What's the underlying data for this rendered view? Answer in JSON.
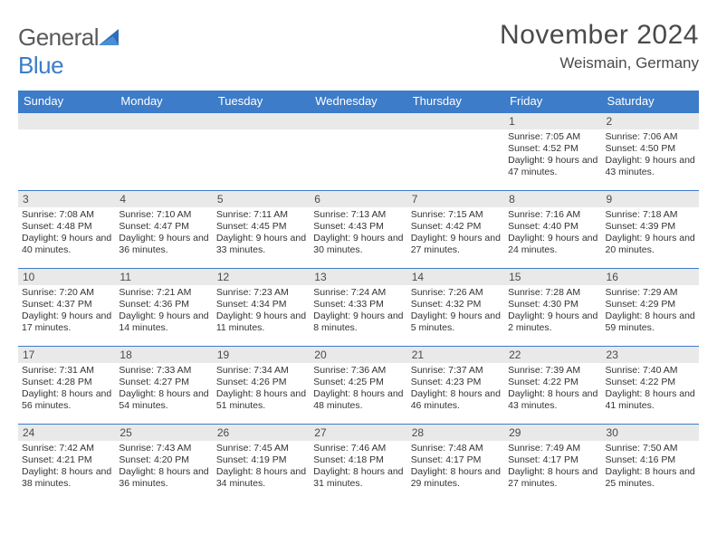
{
  "brand": {
    "text1": "General",
    "text2": "Blue"
  },
  "title": "November 2024",
  "location": "Weismain, Germany",
  "header_color": "#3d7cc9",
  "daynum_bg": "#e9e9e9",
  "days_of_week": [
    "Sunday",
    "Monday",
    "Tuesday",
    "Wednesday",
    "Thursday",
    "Friday",
    "Saturday"
  ],
  "weeks": [
    [
      null,
      null,
      null,
      null,
      null,
      {
        "n": "1",
        "sunrise": "7:05 AM",
        "sunset": "4:52 PM",
        "dl": "9 hours and 47 minutes."
      },
      {
        "n": "2",
        "sunrise": "7:06 AM",
        "sunset": "4:50 PM",
        "dl": "9 hours and 43 minutes."
      }
    ],
    [
      {
        "n": "3",
        "sunrise": "7:08 AM",
        "sunset": "4:48 PM",
        "dl": "9 hours and 40 minutes."
      },
      {
        "n": "4",
        "sunrise": "7:10 AM",
        "sunset": "4:47 PM",
        "dl": "9 hours and 36 minutes."
      },
      {
        "n": "5",
        "sunrise": "7:11 AM",
        "sunset": "4:45 PM",
        "dl": "9 hours and 33 minutes."
      },
      {
        "n": "6",
        "sunrise": "7:13 AM",
        "sunset": "4:43 PM",
        "dl": "9 hours and 30 minutes."
      },
      {
        "n": "7",
        "sunrise": "7:15 AM",
        "sunset": "4:42 PM",
        "dl": "9 hours and 27 minutes."
      },
      {
        "n": "8",
        "sunrise": "7:16 AM",
        "sunset": "4:40 PM",
        "dl": "9 hours and 24 minutes."
      },
      {
        "n": "9",
        "sunrise": "7:18 AM",
        "sunset": "4:39 PM",
        "dl": "9 hours and 20 minutes."
      }
    ],
    [
      {
        "n": "10",
        "sunrise": "7:20 AM",
        "sunset": "4:37 PM",
        "dl": "9 hours and 17 minutes."
      },
      {
        "n": "11",
        "sunrise": "7:21 AM",
        "sunset": "4:36 PM",
        "dl": "9 hours and 14 minutes."
      },
      {
        "n": "12",
        "sunrise": "7:23 AM",
        "sunset": "4:34 PM",
        "dl": "9 hours and 11 minutes."
      },
      {
        "n": "13",
        "sunrise": "7:24 AM",
        "sunset": "4:33 PM",
        "dl": "9 hours and 8 minutes."
      },
      {
        "n": "14",
        "sunrise": "7:26 AM",
        "sunset": "4:32 PM",
        "dl": "9 hours and 5 minutes."
      },
      {
        "n": "15",
        "sunrise": "7:28 AM",
        "sunset": "4:30 PM",
        "dl": "9 hours and 2 minutes."
      },
      {
        "n": "16",
        "sunrise": "7:29 AM",
        "sunset": "4:29 PM",
        "dl": "8 hours and 59 minutes."
      }
    ],
    [
      {
        "n": "17",
        "sunrise": "7:31 AM",
        "sunset": "4:28 PM",
        "dl": "8 hours and 56 minutes."
      },
      {
        "n": "18",
        "sunrise": "7:33 AM",
        "sunset": "4:27 PM",
        "dl": "8 hours and 54 minutes."
      },
      {
        "n": "19",
        "sunrise": "7:34 AM",
        "sunset": "4:26 PM",
        "dl": "8 hours and 51 minutes."
      },
      {
        "n": "20",
        "sunrise": "7:36 AM",
        "sunset": "4:25 PM",
        "dl": "8 hours and 48 minutes."
      },
      {
        "n": "21",
        "sunrise": "7:37 AM",
        "sunset": "4:23 PM",
        "dl": "8 hours and 46 minutes."
      },
      {
        "n": "22",
        "sunrise": "7:39 AM",
        "sunset": "4:22 PM",
        "dl": "8 hours and 43 minutes."
      },
      {
        "n": "23",
        "sunrise": "7:40 AM",
        "sunset": "4:22 PM",
        "dl": "8 hours and 41 minutes."
      }
    ],
    [
      {
        "n": "24",
        "sunrise": "7:42 AM",
        "sunset": "4:21 PM",
        "dl": "8 hours and 38 minutes."
      },
      {
        "n": "25",
        "sunrise": "7:43 AM",
        "sunset": "4:20 PM",
        "dl": "8 hours and 36 minutes."
      },
      {
        "n": "26",
        "sunrise": "7:45 AM",
        "sunset": "4:19 PM",
        "dl": "8 hours and 34 minutes."
      },
      {
        "n": "27",
        "sunrise": "7:46 AM",
        "sunset": "4:18 PM",
        "dl": "8 hours and 31 minutes."
      },
      {
        "n": "28",
        "sunrise": "7:48 AM",
        "sunset": "4:17 PM",
        "dl": "8 hours and 29 minutes."
      },
      {
        "n": "29",
        "sunrise": "7:49 AM",
        "sunset": "4:17 PM",
        "dl": "8 hours and 27 minutes."
      },
      {
        "n": "30",
        "sunrise": "7:50 AM",
        "sunset": "4:16 PM",
        "dl": "8 hours and 25 minutes."
      }
    ]
  ],
  "labels": {
    "sunrise": "Sunrise:",
    "sunset": "Sunset:",
    "daylight": "Daylight:"
  }
}
